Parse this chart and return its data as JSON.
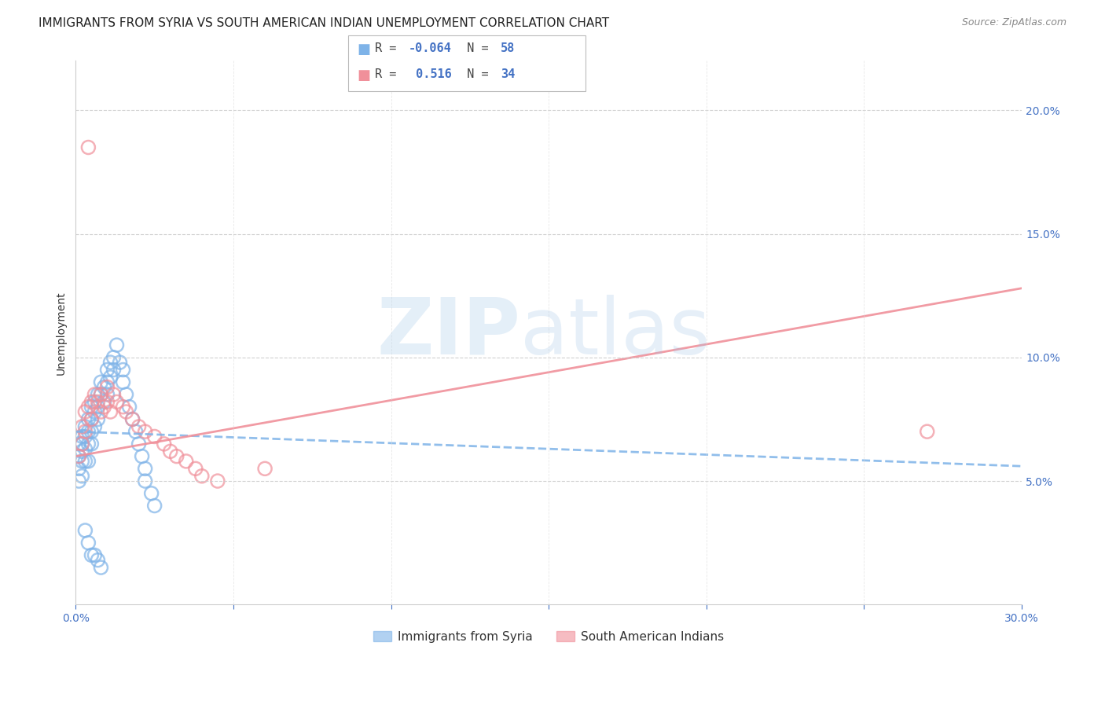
{
  "title": "IMMIGRANTS FROM SYRIA VS SOUTH AMERICAN INDIAN UNEMPLOYMENT CORRELATION CHART",
  "source": "Source: ZipAtlas.com",
  "ylabel": "Unemployment",
  "xlim": [
    0.0,
    0.3
  ],
  "ylim": [
    0.0,
    0.22
  ],
  "ytick_labels_right": [
    "5.0%",
    "10.0%",
    "15.0%",
    "20.0%"
  ],
  "ytick_values_right": [
    0.05,
    0.1,
    0.15,
    0.2
  ],
  "blue_color": "#7EB3E8",
  "pink_color": "#F0909A",
  "legend_R_blue": "-0.064",
  "legend_N_blue": "58",
  "legend_R_pink": "0.516",
  "legend_N_pink": "34",
  "legend_label_blue": "Immigrants from Syria",
  "legend_label_pink": "South American Indians",
  "watermark_zip": "ZIP",
  "watermark_atlas": "atlas",
  "blue_scatter_x": [
    0.001,
    0.001,
    0.001,
    0.001,
    0.002,
    0.002,
    0.002,
    0.002,
    0.002,
    0.003,
    0.003,
    0.003,
    0.003,
    0.004,
    0.004,
    0.004,
    0.004,
    0.005,
    0.005,
    0.005,
    0.005,
    0.006,
    0.006,
    0.006,
    0.007,
    0.007,
    0.007,
    0.008,
    0.008,
    0.009,
    0.009,
    0.01,
    0.01,
    0.01,
    0.011,
    0.011,
    0.012,
    0.012,
    0.013,
    0.014,
    0.015,
    0.015,
    0.016,
    0.017,
    0.018,
    0.019,
    0.02,
    0.021,
    0.022,
    0.022,
    0.024,
    0.025,
    0.003,
    0.004,
    0.005,
    0.006,
    0.007,
    0.008
  ],
  "blue_scatter_y": [
    0.065,
    0.06,
    0.055,
    0.05,
    0.068,
    0.065,
    0.062,
    0.058,
    0.052,
    0.072,
    0.068,
    0.063,
    0.058,
    0.075,
    0.07,
    0.065,
    0.058,
    0.08,
    0.075,
    0.07,
    0.065,
    0.082,
    0.078,
    0.072,
    0.085,
    0.08,
    0.075,
    0.09,
    0.085,
    0.088,
    0.082,
    0.095,
    0.09,
    0.085,
    0.098,
    0.092,
    0.1,
    0.095,
    0.105,
    0.098,
    0.095,
    0.09,
    0.085,
    0.08,
    0.075,
    0.07,
    0.065,
    0.06,
    0.055,
    0.05,
    0.045,
    0.04,
    0.03,
    0.025,
    0.02,
    0.02,
    0.018,
    0.015
  ],
  "pink_scatter_x": [
    0.001,
    0.002,
    0.002,
    0.003,
    0.003,
    0.004,
    0.005,
    0.005,
    0.006,
    0.007,
    0.008,
    0.008,
    0.009,
    0.01,
    0.01,
    0.011,
    0.012,
    0.013,
    0.015,
    0.016,
    0.018,
    0.02,
    0.022,
    0.025,
    0.028,
    0.03,
    0.032,
    0.035,
    0.038,
    0.04,
    0.045,
    0.06,
    0.27,
    0.004
  ],
  "pink_scatter_y": [
    0.06,
    0.072,
    0.065,
    0.078,
    0.07,
    0.08,
    0.082,
    0.075,
    0.085,
    0.082,
    0.085,
    0.078,
    0.08,
    0.088,
    0.082,
    0.078,
    0.085,
    0.082,
    0.08,
    0.078,
    0.075,
    0.072,
    0.07,
    0.068,
    0.065,
    0.062,
    0.06,
    0.058,
    0.055,
    0.052,
    0.05,
    0.055,
    0.07,
    0.185
  ],
  "blue_trend_start_x": 0.0,
  "blue_trend_end_x": 0.3,
  "blue_trend_start_y": 0.07,
  "blue_trend_end_y": 0.056,
  "pink_trend_start_x": 0.0,
  "pink_trend_end_x": 0.3,
  "pink_trend_start_y": 0.06,
  "pink_trend_end_y": 0.128,
  "title_fontsize": 11,
  "axis_label_fontsize": 10,
  "tick_fontsize": 10,
  "background_color": "#FFFFFF"
}
